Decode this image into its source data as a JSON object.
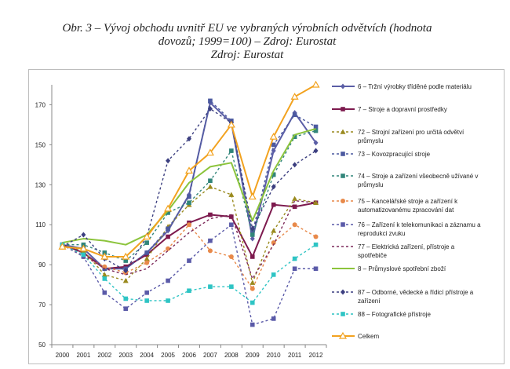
{
  "title": {
    "line1": "Obr. 3 – Vývoj obchodu uvnitř EU ve vybraných výrobních odvětvích (hodnota",
    "line2": "dovozů; 1999=100) – Zdroj: Eurostat",
    "line3": "Zdroj: Eurostat"
  },
  "chart_data": {
    "type": "line",
    "x": [
      "2000",
      "2001",
      "2002",
      "2003",
      "2004",
      "2005",
      "2006",
      "2007",
      "2008",
      "2009",
      "2010",
      "2011",
      "2012"
    ],
    "ylim": [
      50,
      180
    ],
    "yticks": [
      50,
      70,
      90,
      110,
      130,
      150,
      170
    ],
    "grid": false,
    "legend_position": "right",
    "series": [
      {
        "name": "6 – Tržní výrobky tříděné podle materiálu",
        "color": "#5b5ea6",
        "dash": "solid",
        "marker": "diamond",
        "values": [
          100,
          98,
          88,
          88,
          96,
          107,
          125,
          171,
          161,
          103,
          147,
          166,
          151
        ]
      },
      {
        "name": "7 – Stroje a dopravní prostředky",
        "color": "#7d1a4e",
        "dash": "solid",
        "marker": "square",
        "values": [
          100,
          96,
          88,
          89,
          95,
          104,
          111,
          115,
          114,
          94,
          120,
          119,
          121
        ]
      },
      {
        "name": "72 – Strojní zařízení pro určitá odvětví průmyslu",
        "color": "#9a8a1e",
        "dash": "dash",
        "marker": "triangle",
        "values": [
          100,
          97,
          85,
          82,
          93,
          109,
          120,
          129,
          125,
          81,
          107,
          123,
          121
        ]
      },
      {
        "name": "73 – Kovozpracující stroje",
        "color": "#4c5aa0",
        "dash": "dash",
        "marker": "square",
        "values": [
          100,
          98,
          88,
          88,
          96,
          108,
          124,
          172,
          162,
          106,
          150,
          165,
          159
        ]
      },
      {
        "name": "74 – Stroje a zařízení všeobecně užívané v průmyslu",
        "color": "#31857a",
        "dash": "dash",
        "marker": "square",
        "values": [
          100,
          100,
          96,
          92,
          101,
          116,
          121,
          132,
          147,
          105,
          135,
          154,
          157
        ]
      },
      {
        "name": "75 – Kancelářské stroje a zařízení k automatizovanému zpracování dat",
        "color": "#e8894a",
        "dash": "dash",
        "marker": "circle",
        "values": [
          100,
          94,
          89,
          86,
          91,
          98,
          110,
          97,
          94,
          78,
          101,
          110,
          104
        ]
      },
      {
        "name": "76 – Zařízení k telekomunikaci a záznamu a reprodukci zvuku",
        "color": "#5a5aa8",
        "dash": "dash",
        "marker": "square",
        "values": [
          100,
          94,
          76,
          68,
          76,
          82,
          92,
          102,
          110,
          60,
          63,
          88,
          88
        ]
      },
      {
        "name": "77 – Elektrická zařízení, přístroje a spotřebiče",
        "color": "#7d2a5a",
        "dash": "dash",
        "marker": "none",
        "values": [
          100,
          95,
          88,
          85,
          88,
          97,
          106,
          113,
          115,
          83,
          100,
          122,
          121
        ]
      },
      {
        "name": "8 – Průmyslové spotřební zboží",
        "color": "#8cc43c",
        "dash": "solid",
        "marker": "none",
        "values": [
          101,
          103,
          102,
          100,
          105,
          117,
          131,
          139,
          141,
          112,
          137,
          155,
          158
        ]
      },
      {
        "name": "87 – Odborné, vědecké a řídicí přístroje a zařízení",
        "color": "#3c3f80",
        "dash": "dash",
        "marker": "diamond",
        "values": [
          99,
          105,
          93,
          87,
          104,
          142,
          153,
          168,
          161,
          108,
          129,
          140,
          147
        ]
      },
      {
        "name": "88 – Fotografické přístroje",
        "color": "#2ec4c4",
        "dash": "dash",
        "marker": "square",
        "values": [
          100,
          95,
          83,
          73,
          72,
          72,
          77,
          79,
          79,
          71,
          85,
          93,
          100
        ]
      },
      {
        "name": "Celkem",
        "color": "#f2a21f",
        "dash": "solid",
        "marker": "triangle",
        "values": [
          99,
          98,
          94,
          94,
          104,
          118,
          137,
          146,
          160,
          124,
          154,
          174,
          180
        ]
      }
    ]
  }
}
